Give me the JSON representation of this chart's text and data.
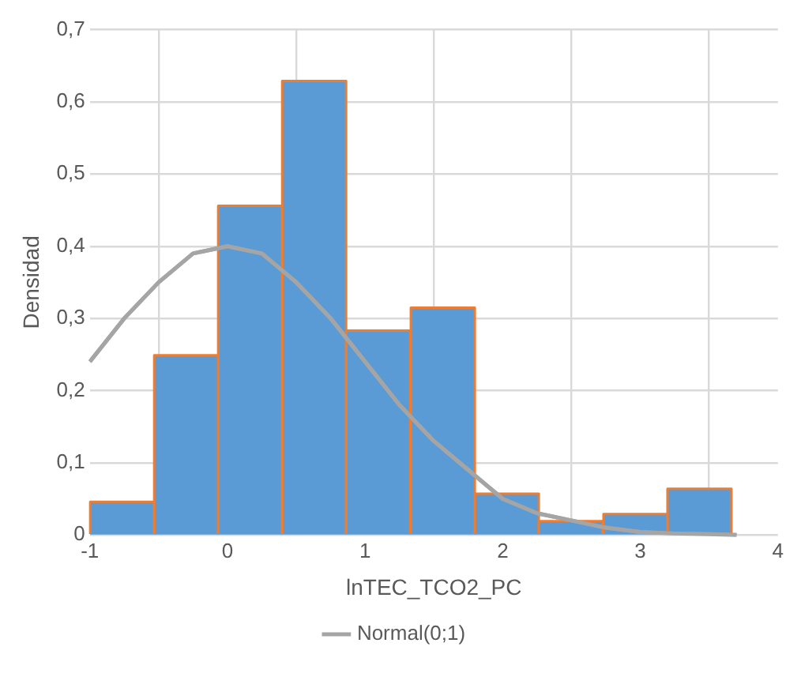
{
  "chart_data": {
    "type": "histogram",
    "xlabel": "lnTEC_TCO2_PC",
    "ylabel": "Densidad",
    "bins": [
      -1,
      -0.53,
      -0.07,
      0.4,
      0.86,
      1.33,
      1.8,
      2.26,
      2.73,
      3.2,
      3.66
    ],
    "values": [
      0.046,
      0.249,
      0.456,
      0.629,
      0.283,
      0.315,
      0.057,
      0.019,
      0.029,
      0.064
    ],
    "color": "#5b9bd5",
    "series": [
      {
        "type": "line",
        "name": "Normal(0;1)",
        "color": "#a5a5a5",
        "x": [
          -1,
          -0.75,
          -0.5,
          -0.25,
          0,
          0.25,
          0.5,
          0.75,
          1,
          1.25,
          1.5,
          1.75,
          2,
          2.25,
          2.5,
          2.75,
          3,
          3.25,
          3.5,
          3.7
        ],
        "values": [
          0.24,
          0.3,
          0.35,
          0.39,
          0.4,
          0.39,
          0.35,
          0.3,
          0.24,
          0.18,
          0.13,
          0.09,
          0.05,
          0.03,
          0.02,
          0.01,
          0.004,
          0.002,
          0.001,
          0
        ]
      }
    ],
    "xlim": [
      -1,
      4
    ],
    "xticks": [
      -1,
      0,
      1,
      2,
      3,
      4
    ],
    "ylim": [
      0,
      0.7
    ],
    "yticks": [
      0,
      {
        "value": 0.1,
        "label": "0,1"
      },
      {
        "value": 0.2,
        "label": "0,2"
      },
      {
        "value": 0.3,
        "label": "0,3"
      },
      {
        "value": 0.4,
        "label": "0,4"
      },
      {
        "value": 0.5,
        "label": "0,5"
      },
      {
        "value": 0.6,
        "label": "0,6"
      },
      {
        "value": 0.7,
        "label": "0,7"
      }
    ],
    "grid": true,
    "legend": "bottom"
  }
}
